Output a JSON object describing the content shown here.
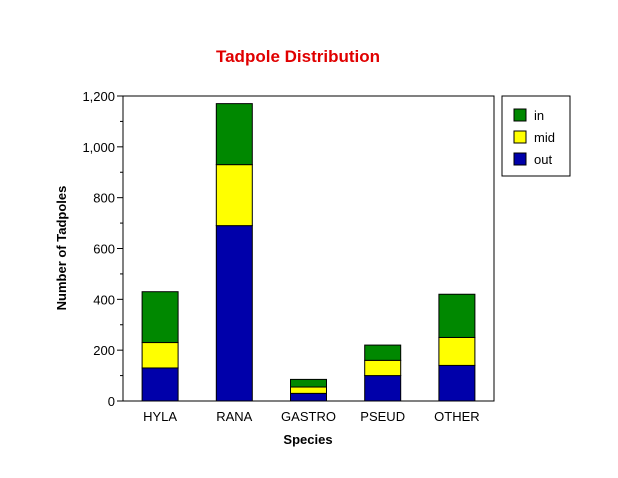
{
  "chart_data": {
    "type": "bar",
    "stacked": true,
    "title": "Tadpole Distribution",
    "xlabel": "Species",
    "ylabel": "Number of Tadpoles",
    "categories": [
      "HYLA",
      "RANA",
      "GASTRO",
      "PSEUD",
      "OTHER"
    ],
    "series": [
      {
        "name": "out",
        "color": "#0000aa",
        "values": [
          130,
          690,
          30,
          100,
          140
        ]
      },
      {
        "name": "mid",
        "color": "#ffff00",
        "values": [
          100,
          240,
          25,
          60,
          110
        ]
      },
      {
        "name": "in",
        "color": "#008800",
        "values": [
          200,
          240,
          30,
          60,
          170
        ]
      }
    ],
    "legend_order": [
      "in",
      "mid",
      "out"
    ],
    "legend_position": "top-right",
    "ylim": [
      0,
      1200
    ],
    "yticks": [
      0,
      200,
      400,
      600,
      800,
      1000,
      1200
    ],
    "ytick_labels": [
      "0",
      "200",
      "400",
      "600",
      "800",
      "1,000",
      "1,200"
    ],
    "grid": false
  }
}
